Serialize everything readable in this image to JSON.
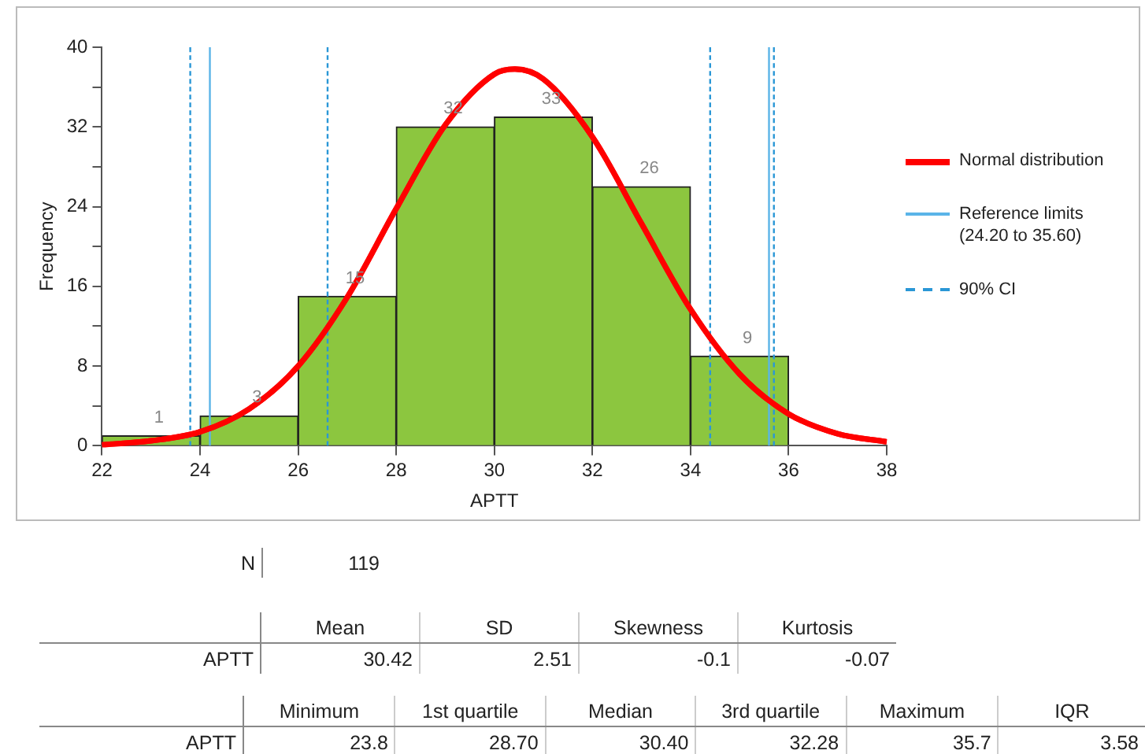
{
  "chart_data": {
    "type": "histogram",
    "xlabel": "APTT",
    "ylabel": "Frequency",
    "bins": [
      22,
      24,
      26,
      28,
      30,
      32,
      34,
      36
    ],
    "values": [
      1,
      3,
      15,
      32,
      33,
      26,
      9
    ],
    "color": "#8cc63f",
    "value_labels": [
      "1",
      "3",
      "15",
      "32",
      "33",
      "26",
      "9"
    ],
    "series": [
      {
        "type": "line",
        "name": "Normal distribution",
        "color": "#ff0000",
        "x": [
          22,
          23,
          24,
          25,
          26,
          27,
          28,
          29,
          30,
          30.42,
          31,
          32,
          33,
          34,
          35,
          36,
          37,
          38
        ],
        "values": [
          0.1,
          0.5,
          1.4,
          3.7,
          8.0,
          14.9,
          23.8,
          32.2,
          37.3,
          37.8,
          36.8,
          31.0,
          22.3,
          13.7,
          7.2,
          3.2,
          1.2,
          0.4
        ]
      },
      {
        "type": "line",
        "name": "Reference limits (24.20 to 35.60)",
        "color": "#5ab4e8",
        "line_style": "solid",
        "x": [
          24.2,
          24.2
        ],
        "values": [
          0,
          40
        ]
      },
      {
        "type": "line",
        "color": "#5ab4e8",
        "line_style": "solid",
        "x": [
          35.6,
          35.6
        ],
        "values": [
          0,
          40
        ]
      },
      {
        "type": "line",
        "name": "90% CI",
        "color": "#2a97d6",
        "line_style": "dashed",
        "x": [
          23.8,
          23.8
        ],
        "values": [
          0,
          40
        ]
      },
      {
        "type": "line",
        "color": "#2a97d6",
        "line_style": "dashed",
        "x": [
          26.6,
          26.6
        ],
        "values": [
          0,
          40
        ]
      },
      {
        "type": "line",
        "color": "#2a97d6",
        "line_style": "dashed",
        "x": [
          34.4,
          34.4
        ],
        "values": [
          0,
          40
        ]
      },
      {
        "type": "line",
        "color": "#2a97d6",
        "line_style": "dashed",
        "x": [
          35.7,
          35.7
        ],
        "values": [
          0,
          40
        ]
      }
    ],
    "xlim": [
      22,
      38
    ],
    "xticks": [
      22,
      24,
      26,
      28,
      30,
      32,
      34,
      36,
      38
    ],
    "ylim": [
      0,
      40
    ],
    "yticks": [
      0,
      {
        "value": 4,
        "label": null
      },
      8,
      {
        "value": 12,
        "label": null
      },
      16,
      {
        "value": 20,
        "label": null
      },
      24,
      {
        "value": 28,
        "label": null
      },
      32,
      {
        "value": 36,
        "label": null
      },
      40
    ],
    "legend": "right",
    "grid": false,
    "annotations": [
      "N",
      "119",
      "Mean",
      "SD",
      "Skewness",
      "Kurtosis",
      "APTT",
      "30.42",
      "2.51",
      "-0.1",
      "-0.07",
      "Minimum",
      "1st quartile",
      "Median",
      "3rd quartile",
      "Maximum",
      "IQR",
      "APTT",
      "23.8",
      "28.70",
      "30.40",
      "32.28",
      "35.7",
      "3.58"
    ]
  }
}
